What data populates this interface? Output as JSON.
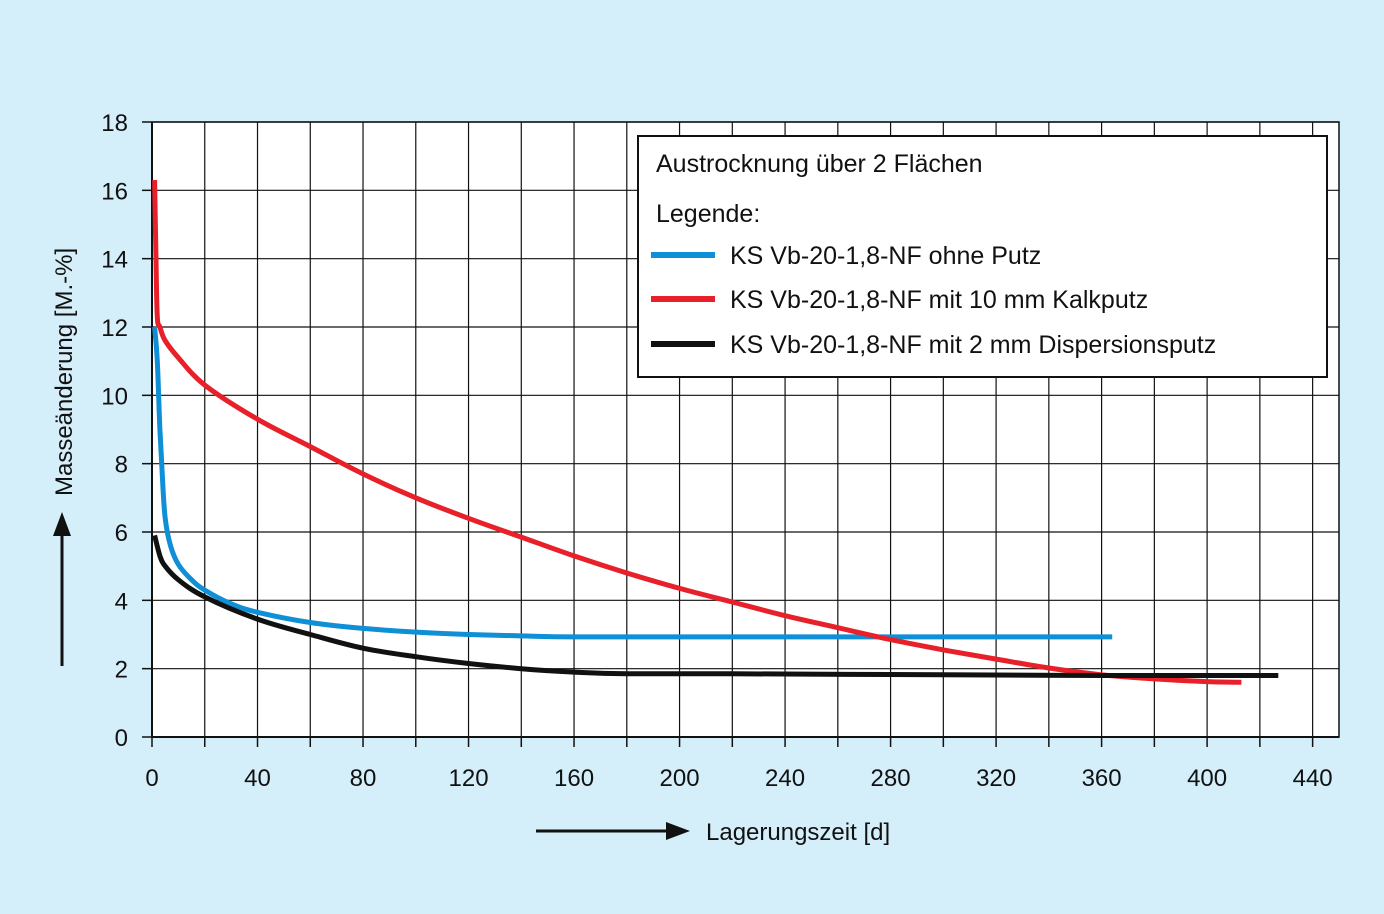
{
  "chart_data": {
    "type": "line",
    "x_axis": {
      "label": "Lagerungszeit [d]",
      "ticks": [
        0,
        40,
        80,
        120,
        160,
        200,
        240,
        280,
        320,
        360,
        400,
        440
      ],
      "range": [
        0,
        450
      ],
      "minor_step": 20
    },
    "y_axis": {
      "label": "Masseänderung [M.-%]",
      "ticks": [
        0,
        2,
        4,
        6,
        8,
        10,
        12,
        14,
        16,
        18
      ],
      "range": [
        0,
        18
      ]
    },
    "grid": true,
    "legend": {
      "position": "top-right",
      "title": "Austrocknung über 2 Flächen",
      "subtitle": "Legende:"
    },
    "series": [
      {
        "name": "KS Vb-20-1,8-NF ohne Putz",
        "color": "#0f8fd6",
        "points": [
          [
            1,
            12.0
          ],
          [
            2,
            11.0
          ],
          [
            3,
            9.0
          ],
          [
            4,
            7.5
          ],
          [
            5,
            6.4
          ],
          [
            7,
            5.6
          ],
          [
            10,
            5.05
          ],
          [
            15,
            4.6
          ],
          [
            20,
            4.3
          ],
          [
            30,
            3.9
          ],
          [
            40,
            3.65
          ],
          [
            60,
            3.35
          ],
          [
            80,
            3.18
          ],
          [
            100,
            3.07
          ],
          [
            120,
            3.0
          ],
          [
            140,
            2.96
          ],
          [
            160,
            2.93
          ],
          [
            200,
            2.93
          ],
          [
            280,
            2.93
          ],
          [
            364,
            2.93
          ]
        ]
      },
      {
        "name": "KS Vb-20-1,8-NF mit 10 mm Kalkputz",
        "color": "#e8202a",
        "points": [
          [
            1,
            16.3
          ],
          [
            1.5,
            14.0
          ],
          [
            2,
            12.3
          ],
          [
            3,
            12.0
          ],
          [
            5,
            11.6
          ],
          [
            10,
            11.1
          ],
          [
            20,
            10.3
          ],
          [
            40,
            9.3
          ],
          [
            60,
            8.5
          ],
          [
            80,
            7.7
          ],
          [
            100,
            7.0
          ],
          [
            120,
            6.4
          ],
          [
            140,
            5.85
          ],
          [
            160,
            5.3
          ],
          [
            180,
            4.8
          ],
          [
            200,
            4.35
          ],
          [
            220,
            3.95
          ],
          [
            240,
            3.55
          ],
          [
            260,
            3.2
          ],
          [
            280,
            2.85
          ],
          [
            300,
            2.55
          ],
          [
            320,
            2.28
          ],
          [
            340,
            2.02
          ],
          [
            360,
            1.82
          ],
          [
            380,
            1.7
          ],
          [
            400,
            1.62
          ],
          [
            413,
            1.6
          ]
        ]
      },
      {
        "name": "KS Vb-20-1,8-NF mit 2 mm Dispersionsputz",
        "color": "#111111",
        "points": [
          [
            1,
            5.9
          ],
          [
            3,
            5.3
          ],
          [
            5,
            5.0
          ],
          [
            10,
            4.6
          ],
          [
            20,
            4.1
          ],
          [
            40,
            3.45
          ],
          [
            60,
            3.0
          ],
          [
            80,
            2.6
          ],
          [
            100,
            2.35
          ],
          [
            120,
            2.15
          ],
          [
            140,
            2.0
          ],
          [
            160,
            1.9
          ],
          [
            180,
            1.85
          ],
          [
            220,
            1.85
          ],
          [
            300,
            1.82
          ],
          [
            360,
            1.8
          ],
          [
            427,
            1.8
          ]
        ]
      }
    ]
  }
}
